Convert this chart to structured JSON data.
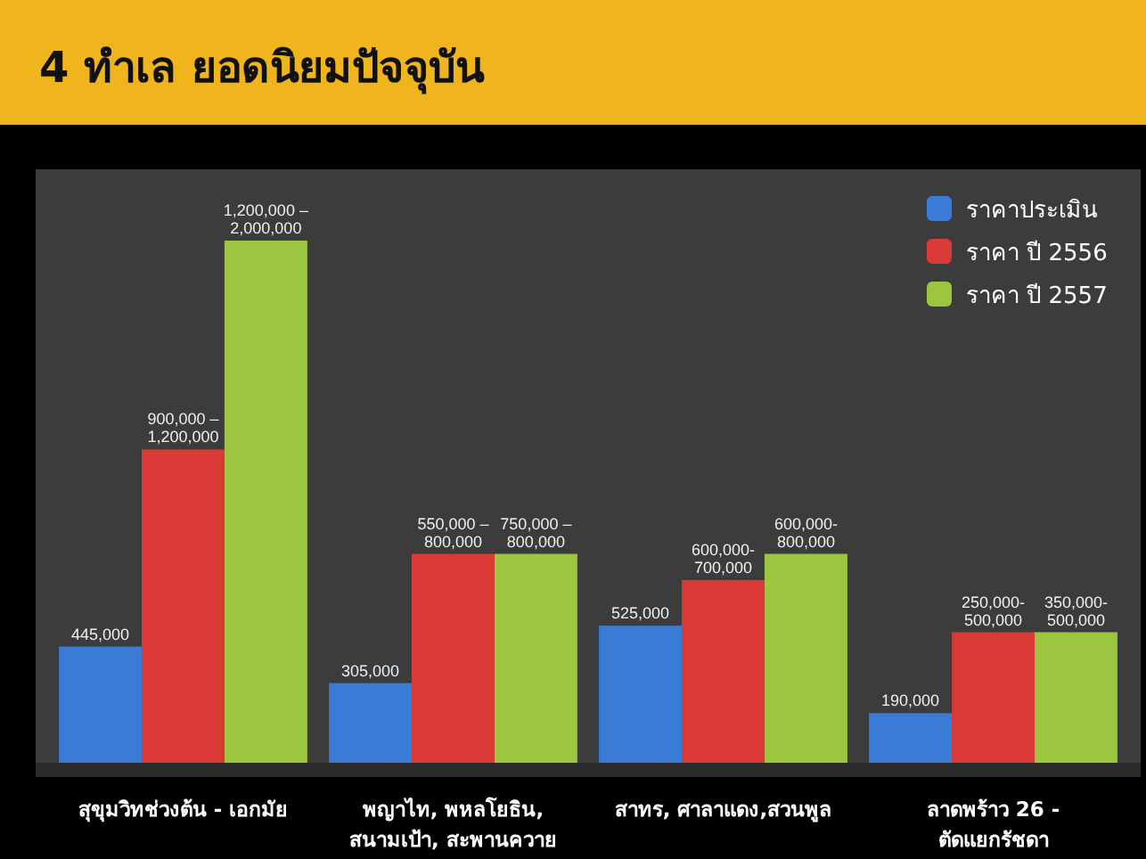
{
  "chart_data": {
    "type": "bar",
    "title": "4 ทำเล ยอดนิยมปัจจุบัน",
    "categories": [
      "สุขุมวิทช่วงต้น - เอกมัย",
      "พญาไท, พหลโยธิน,\nสนามเป้า, สะพานควาย",
      "สาทร, ศาลาแดง,สวนพูล",
      "ลาดพร้าว 26 -\nตัดแยกรัชดา"
    ],
    "series": [
      {
        "name": "ราคาประเมิน",
        "color": "#3a7bd5",
        "values": [
          445000,
          305000,
          525000,
          190000
        ],
        "value_labels": [
          "445,000",
          "305,000",
          "525,000",
          "190,000"
        ]
      },
      {
        "name": "ราคา ปี 2556",
        "color": "#d93a36",
        "values": [
          1200000,
          800000,
          700000,
          500000
        ],
        "value_labels": [
          "900,000 –\n1,200,000",
          "550,000 –\n800,000",
          "600,000-\n700,000",
          "250,000-\n500,000"
        ]
      },
      {
        "name": "ราคา ปี 2557",
        "color": "#9dc640",
        "values": [
          2000000,
          800000,
          800000,
          500000
        ],
        "value_labels": [
          "1,200,000 –\n2,000,000",
          "750,000 –\n800,000",
          "600,000-\n800,000",
          "350,000-\n500,000"
        ]
      }
    ],
    "legend": "top right"
  }
}
